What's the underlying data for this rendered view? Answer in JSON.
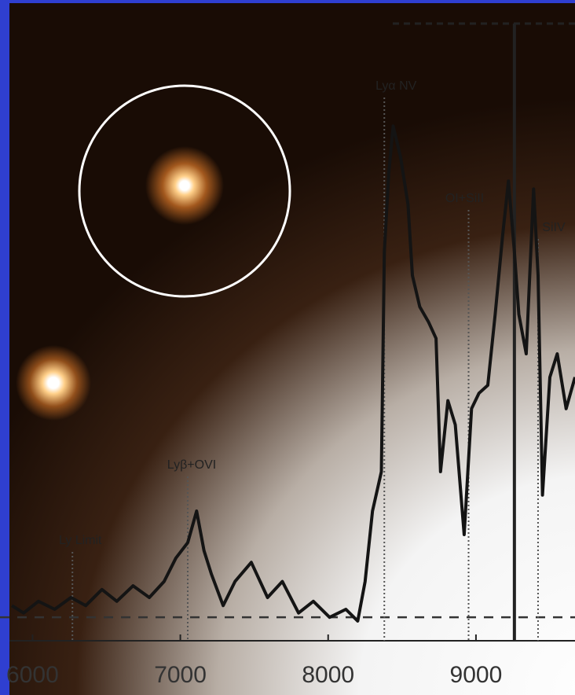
{
  "chart_data": {
    "type": "line",
    "x": [
      5860,
      5940,
      6040,
      6150,
      6260,
      6360,
      6470,
      6570,
      6680,
      6790,
      6890,
      6970,
      7050,
      7110,
      7160,
      7210,
      7290,
      7370,
      7480,
      7590,
      7690,
      7800,
      7900,
      8010,
      8120,
      8200,
      8250,
      8300,
      8360,
      8380,
      8410,
      8440,
      8490,
      8540,
      8570,
      8620,
      8680,
      8730,
      8760,
      8810,
      8860,
      8920,
      8970,
      9020,
      9080,
      9130,
      9180,
      9220,
      9260,
      9290,
      9340,
      9390,
      9420,
      9450,
      9500,
      9550,
      9610,
      9670
    ],
    "values": [
      5.7,
      4.5,
      6.4,
      5.1,
      7.0,
      5.7,
      8.3,
      6.4,
      8.9,
      7.0,
      9.6,
      13.4,
      15.9,
      21.0,
      14.6,
      10.8,
      5.7,
      9.6,
      12.7,
      7.0,
      9.6,
      4.5,
      6.4,
      3.8,
      5.1,
      3.2,
      9.6,
      21.0,
      27.4,
      63.1,
      75.8,
      83.4,
      78.3,
      70.7,
      59.2,
      54.1,
      51.6,
      49.0,
      27.4,
      38.9,
      35.0,
      17.2,
      37.6,
      40.1,
      41.4,
      52.9,
      65.6,
      74.5,
      63.1,
      52.9,
      46.5,
      73.2,
      59.2,
      23.6,
      42.7,
      46.5,
      37.6,
      42.7
    ],
    "color": "#141414",
    "xlim": [
      5780,
      9670
    ],
    "ylim": [
      0,
      100
    ],
    "xticks": [
      6000,
      7000,
      8000,
      9000
    ],
    "hline": 3.8,
    "vline": 9260,
    "annotations": [
      {
        "text": "Ly Limit",
        "x": 6270
      },
      {
        "text": "Lyβ+OVI",
        "x": 7050
      },
      {
        "text": "Lyα NV",
        "x": 8380
      },
      {
        "text": "OI+SiII",
        "x": 8950
      },
      {
        "text": "SiIV",
        "x": 9420
      }
    ]
  }
}
